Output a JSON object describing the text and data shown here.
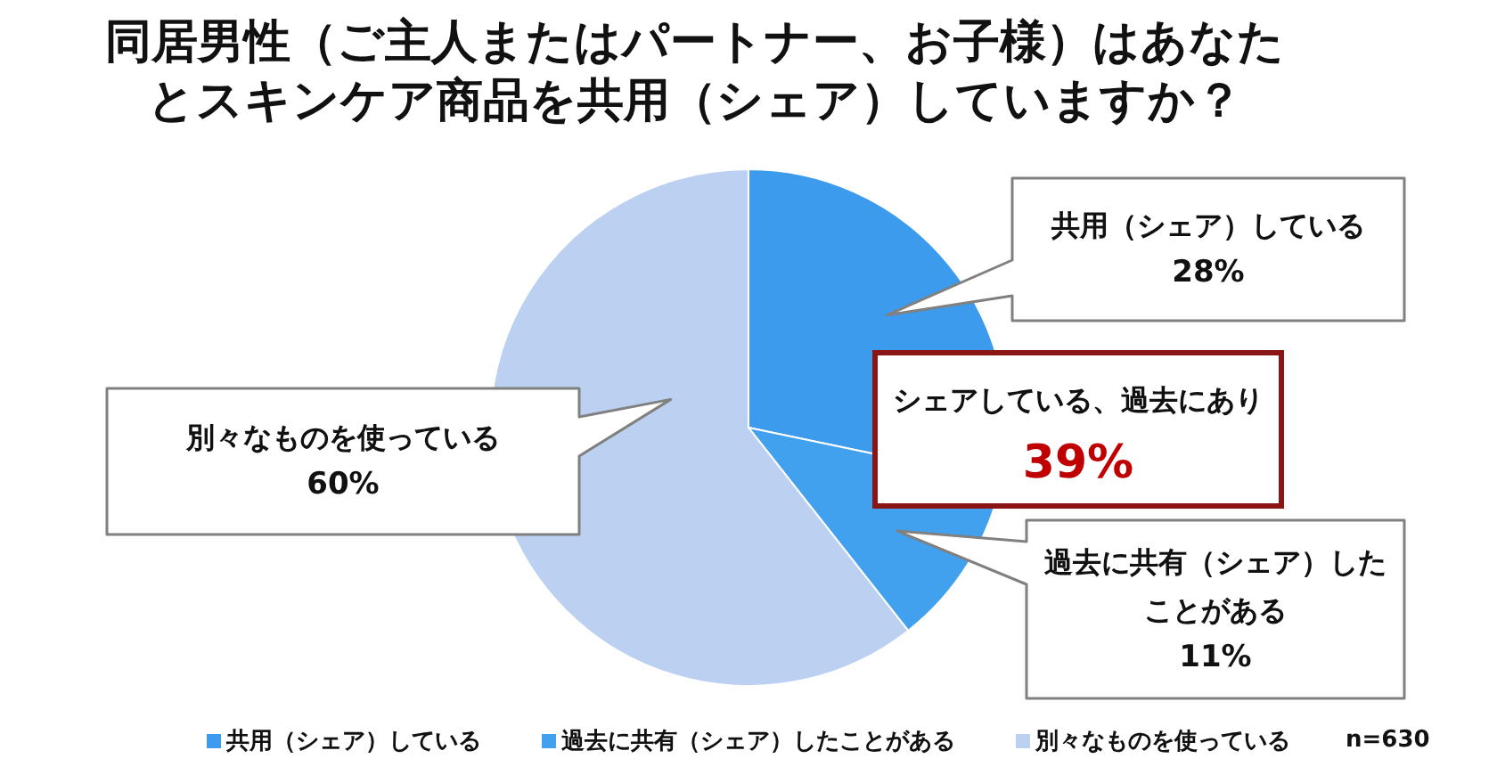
{
  "chart_data": {
    "type": "pie",
    "title": "同居男性（ご主人またはパートナー、お子様）はあなたとスキンケア商品を共用（シェア）していますか？",
    "categories": [
      "共用（シェア）している",
      "過去に共有（シェア）したことがある",
      "別々なものを使っている"
    ],
    "values": [
      28,
      11,
      60
    ],
    "colors": [
      "#3c9bec",
      "#42a1ef",
      "#bcd1f1"
    ],
    "value_labels": [
      "28%",
      "11%",
      "60%"
    ],
    "legend": "bottom",
    "annotations": [
      "シェアしている、過去にあり\n39%",
      "n=630"
    ]
  }
}
